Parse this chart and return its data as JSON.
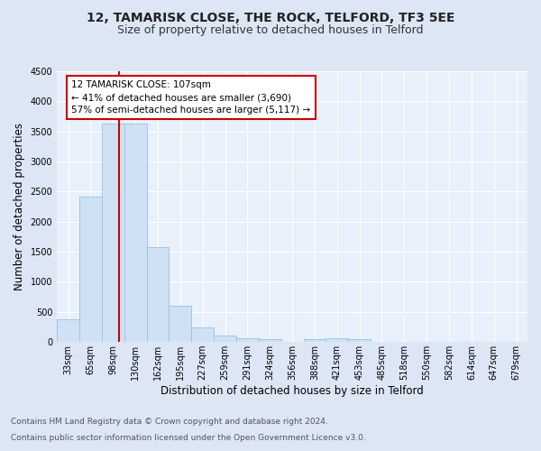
{
  "title": "12, TAMARISK CLOSE, THE ROCK, TELFORD, TF3 5EE",
  "subtitle": "Size of property relative to detached houses in Telford",
  "xlabel": "Distribution of detached houses by size in Telford",
  "ylabel": "Number of detached properties",
  "categories": [
    "33sqm",
    "65sqm",
    "98sqm",
    "130sqm",
    "162sqm",
    "195sqm",
    "227sqm",
    "259sqm",
    "291sqm",
    "324sqm",
    "356sqm",
    "388sqm",
    "421sqm",
    "453sqm",
    "485sqm",
    "518sqm",
    "550sqm",
    "582sqm",
    "614sqm",
    "647sqm",
    "679sqm"
  ],
  "values": [
    370,
    2420,
    3630,
    3630,
    1580,
    600,
    240,
    100,
    60,
    50,
    0,
    50,
    60,
    50,
    0,
    0,
    0,
    0,
    0,
    0,
    0
  ],
  "bar_color": "#cfe2f3",
  "bar_edge_color": "#9fc5e8",
  "property_line_color": "#cc0000",
  "annotation_text": "12 TAMARISK CLOSE: 107sqm\n← 41% of detached houses are smaller (3,690)\n57% of semi-detached houses are larger (5,117) →",
  "annotation_box_color": "#ffffff",
  "annotation_box_edge": "#cc0000",
  "ylim": [
    0,
    4500
  ],
  "yticks": [
    0,
    500,
    1000,
    1500,
    2000,
    2500,
    3000,
    3500,
    4000,
    4500
  ],
  "bg_color": "#dce6f5",
  "plot_bg_color": "#e8f0fb",
  "footer_line1": "Contains HM Land Registry data © Crown copyright and database right 2024.",
  "footer_line2": "Contains public sector information licensed under the Open Government Licence v3.0.",
  "title_fontsize": 10,
  "subtitle_fontsize": 9,
  "xlabel_fontsize": 8.5,
  "ylabel_fontsize": 8.5,
  "tick_fontsize": 7,
  "annotation_fontsize": 7.5,
  "footer_fontsize": 6.5
}
